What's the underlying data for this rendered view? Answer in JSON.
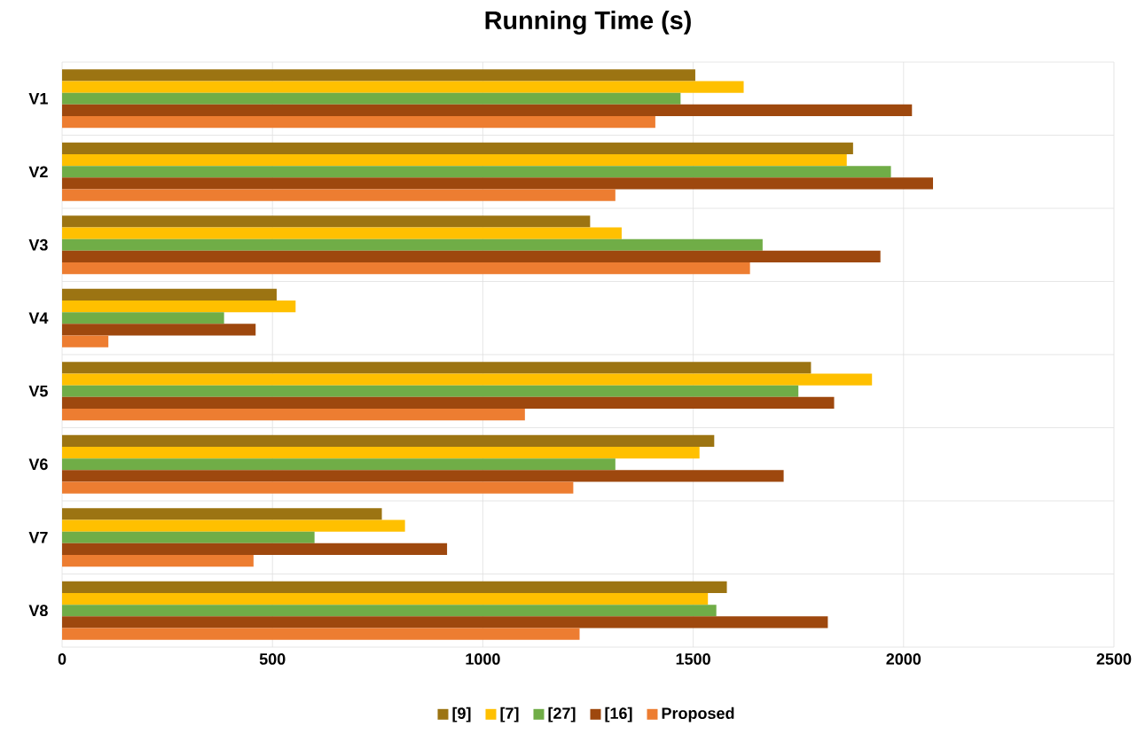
{
  "chart_data": {
    "type": "bar",
    "orientation": "horizontal",
    "title": "Running Time (s)",
    "categories": [
      "V1",
      "V2",
      "V3",
      "V4",
      "V5",
      "V6",
      "V7",
      "V8"
    ],
    "series": [
      {
        "name": "[9]",
        "color": "#9c7412",
        "values": [
          1505,
          1880,
          1255,
          510,
          1780,
          1550,
          760,
          1580
        ]
      },
      {
        "name": "[7]",
        "color": "#ffc000",
        "values": [
          1620,
          1865,
          1330,
          555,
          1925,
          1515,
          815,
          1535
        ]
      },
      {
        "name": "[27]",
        "color": "#70ad47",
        "values": [
          1470,
          1970,
          1665,
          385,
          1750,
          1315,
          600,
          1555
        ]
      },
      {
        "name": "[16]",
        "color": "#9e480e",
        "values": [
          2020,
          2070,
          1945,
          460,
          1835,
          1715,
          915,
          1820
        ]
      },
      {
        "name": "Proposed",
        "color": "#ed7d31",
        "values": [
          1410,
          1315,
          1635,
          110,
          1100,
          1215,
          455,
          1230
        ]
      }
    ],
    "xlim": [
      0,
      2500
    ],
    "xticks": [
      0,
      500,
      1000,
      1500,
      2000,
      2500
    ],
    "grid": true,
    "legend": "bottom"
  }
}
